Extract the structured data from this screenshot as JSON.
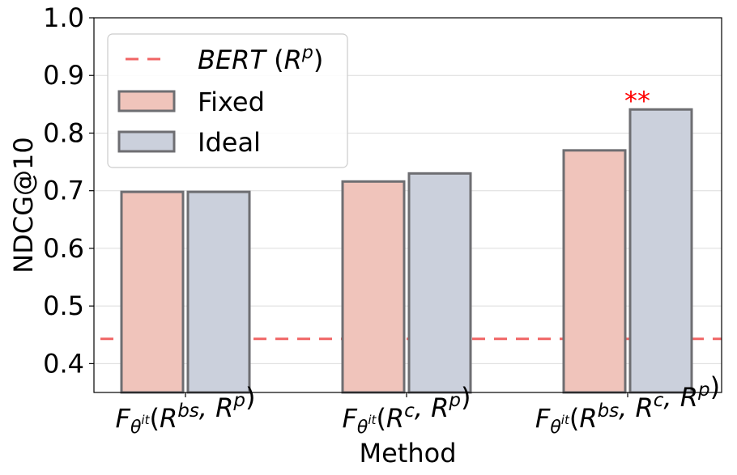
{
  "chart_data": {
    "type": "bar",
    "xlabel": "Method",
    "ylabel": "NDCG@10",
    "ylim": [
      0.35,
      1.0
    ],
    "yticks": [
      "0.4",
      "0.5",
      "0.6",
      "0.7",
      "0.8",
      "0.9",
      "1.0"
    ],
    "grid": "horizontal",
    "legend_position": "top-left",
    "categories": [
      {
        "base": "F",
        "sub": "θ",
        "subsup": "it",
        "args": [
          {
            "b": "R",
            "s": "bs"
          },
          {
            "b": "R",
            "s": "p"
          }
        ]
      },
      {
        "base": "F",
        "sub": "θ",
        "subsup": "it",
        "args": [
          {
            "b": "R",
            "s": "c"
          },
          {
            "b": "R",
            "s": "p"
          }
        ]
      },
      {
        "base": "F",
        "sub": "θ",
        "subsup": "it",
        "args": [
          {
            "b": "R",
            "s": "bs"
          },
          {
            "b": "R",
            "s": "c"
          },
          {
            "b": "R",
            "s": "p"
          }
        ]
      }
    ],
    "series": [
      {
        "name": "Fixed",
        "values": [
          0.698,
          0.716,
          0.77
        ],
        "color": "#f0c4bb"
      },
      {
        "name": "Ideal",
        "values": [
          0.698,
          0.73,
          0.841
        ],
        "color": "#cbd0dc"
      }
    ],
    "bar_edge_color": "#6e6e72",
    "baseline": {
      "name": "BERT",
      "name_suffix": "R",
      "name_suffix_sup": "p",
      "value": 0.443,
      "color": "#f06464"
    },
    "annotations": [
      {
        "text": "**",
        "category_index": 2,
        "series_index": 1,
        "color": "#ff0000"
      }
    ]
  }
}
